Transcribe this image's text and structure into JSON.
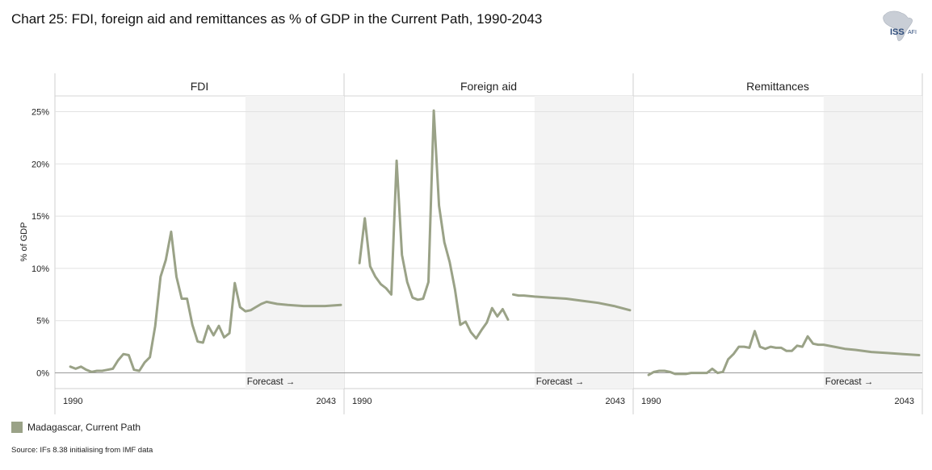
{
  "title": "Chart 25: FDI, foreign aid and remittances as % of GDP in the Current Path, 1990-2043",
  "logo": {
    "text_main": "ISS",
    "text_sub": "AFI",
    "icon": "africa-map-icon"
  },
  "legend": {
    "label": "Madagascar, Current Path",
    "color": "#9aa287"
  },
  "source": "Source: IFs 8.38 initialising from IMF data",
  "forecast_label": "Forecast →",
  "colors": {
    "line": "#9aa287",
    "forecast_shade": "#f3f3f3",
    "grid": "#e2e2e2"
  },
  "chart_data": {
    "type": "line",
    "ylabel": "% of GDP",
    "ylim": [
      -1.5,
      26.5
    ],
    "yticks": [
      0,
      5,
      10,
      15,
      20,
      25
    ],
    "ytick_labels": [
      "0%",
      "5%",
      "10%",
      "15%",
      "20%",
      "25%"
    ],
    "xlim": [
      1990,
      2043
    ],
    "xtick_labels": [
      "1990",
      "2043"
    ],
    "forecast_start": 2025,
    "panels": [
      {
        "title": "FDI",
        "series": [
          {
            "name": "Madagascar, Current Path",
            "segments": [
              [
                [
                  1992,
                  0.6
                ],
                [
                  1993,
                  0.4
                ],
                [
                  1994,
                  0.6
                ],
                [
                  1995,
                  0.3
                ],
                [
                  1996,
                  0.1
                ],
                [
                  1997,
                  0.2
                ],
                [
                  1998,
                  0.2
                ],
                [
                  1999,
                  0.3
                ],
                [
                  2000,
                  0.4
                ],
                [
                  2001,
                  1.2
                ],
                [
                  2002,
                  1.8
                ],
                [
                  2003,
                  1.7
                ],
                [
                  2004,
                  0.3
                ],
                [
                  2005,
                  0.2
                ],
                [
                  2006,
                  1.0
                ],
                [
                  2007,
                  1.5
                ],
                [
                  2008,
                  4.5
                ],
                [
                  2009,
                  9.2
                ],
                [
                  2010,
                  10.8
                ],
                [
                  2011,
                  13.5
                ],
                [
                  2012,
                  9.2
                ],
                [
                  2013,
                  7.1
                ],
                [
                  2014,
                  7.1
                ],
                [
                  2015,
                  4.6
                ],
                [
                  2016,
                  3.0
                ],
                [
                  2017,
                  2.9
                ],
                [
                  2018,
                  4.5
                ],
                [
                  2019,
                  3.6
                ],
                [
                  2020,
                  4.5
                ],
                [
                  2021,
                  3.4
                ],
                [
                  2022,
                  3.8
                ],
                [
                  2023,
                  8.6
                ],
                [
                  2024,
                  6.3
                ],
                [
                  2025,
                  5.9
                ],
                [
                  2026,
                  6.0
                ],
                [
                  2027,
                  6.3
                ],
                [
                  2028,
                  6.6
                ],
                [
                  2029,
                  6.8
                ],
                [
                  2031,
                  6.6
                ],
                [
                  2033,
                  6.5
                ],
                [
                  2036,
                  6.4
                ],
                [
                  2040,
                  6.4
                ],
                [
                  2043,
                  6.5
                ]
              ]
            ]
          }
        ]
      },
      {
        "title": "Foreign aid",
        "series": [
          {
            "name": "Madagascar, Current Path",
            "segments": [
              [
                [
                  1992,
                  10.5
                ],
                [
                  1993,
                  14.8
                ],
                [
                  1994,
                  10.2
                ],
                [
                  1995,
                  9.2
                ],
                [
                  1996,
                  8.5
                ],
                [
                  1997,
                  8.1
                ],
                [
                  1998,
                  7.5
                ],
                [
                  1999,
                  20.3
                ],
                [
                  2000,
                  11.3
                ],
                [
                  2001,
                  8.7
                ],
                [
                  2002,
                  7.2
                ],
                [
                  2003,
                  7.0
                ],
                [
                  2004,
                  7.1
                ],
                [
                  2005,
                  8.7
                ],
                [
                  2006,
                  25.1
                ],
                [
                  2007,
                  16.0
                ],
                [
                  2008,
                  12.5
                ],
                [
                  2009,
                  10.6
                ],
                [
                  2010,
                  8.0
                ],
                [
                  2011,
                  4.6
                ],
                [
                  2012,
                  4.9
                ],
                [
                  2013,
                  3.9
                ],
                [
                  2014,
                  3.3
                ],
                [
                  2015,
                  4.1
                ],
                [
                  2016,
                  4.8
                ],
                [
                  2017,
                  6.2
                ],
                [
                  2018,
                  5.4
                ],
                [
                  2019,
                  6.1
                ],
                [
                  2020,
                  5.1
                ]
              ],
              [
                [
                  2021,
                  7.5
                ],
                [
                  2022,
                  7.4
                ],
                [
                  2023,
                  7.4
                ],
                [
                  2025,
                  7.3
                ],
                [
                  2028,
                  7.2
                ],
                [
                  2031,
                  7.1
                ],
                [
                  2034,
                  6.9
                ],
                [
                  2037,
                  6.7
                ],
                [
                  2040,
                  6.4
                ],
                [
                  2043,
                  6.0
                ]
              ]
            ]
          }
        ]
      },
      {
        "title": "Remittances",
        "series": [
          {
            "name": "Madagascar, Current Path",
            "segments": [
              [
                [
                  1992,
                  -0.2
                ],
                [
                  1993,
                  0.1
                ],
                [
                  1994,
                  0.2
                ],
                [
                  1995,
                  0.2
                ],
                [
                  1996,
                  0.1
                ],
                [
                  1997,
                  -0.1
                ],
                [
                  1998,
                  -0.1
                ],
                [
                  1999,
                  -0.1
                ],
                [
                  2000,
                  0.0
                ],
                [
                  2001,
                  0.0
                ],
                [
                  2002,
                  0.0
                ],
                [
                  2003,
                  0.0
                ],
                [
                  2004,
                  0.4
                ],
                [
                  2005,
                  0.0
                ],
                [
                  2006,
                  0.1
                ],
                [
                  2007,
                  1.3
                ],
                [
                  2008,
                  1.8
                ],
                [
                  2009,
                  2.5
                ],
                [
                  2010,
                  2.5
                ],
                [
                  2011,
                  2.4
                ],
                [
                  2012,
                  4.0
                ],
                [
                  2013,
                  2.5
                ],
                [
                  2014,
                  2.3
                ],
                [
                  2015,
                  2.5
                ],
                [
                  2016,
                  2.4
                ],
                [
                  2017,
                  2.4
                ],
                [
                  2018,
                  2.1
                ],
                [
                  2019,
                  2.1
                ],
                [
                  2020,
                  2.6
                ],
                [
                  2021,
                  2.5
                ],
                [
                  2022,
                  3.5
                ],
                [
                  2023,
                  2.8
                ],
                [
                  2024,
                  2.7
                ],
                [
                  2025,
                  2.7
                ],
                [
                  2027,
                  2.5
                ],
                [
                  2029,
                  2.3
                ],
                [
                  2031,
                  2.2
                ],
                [
                  2034,
                  2.0
                ],
                [
                  2037,
                  1.9
                ],
                [
                  2040,
                  1.8
                ],
                [
                  2043,
                  1.7
                ]
              ]
            ]
          }
        ]
      }
    ]
  }
}
